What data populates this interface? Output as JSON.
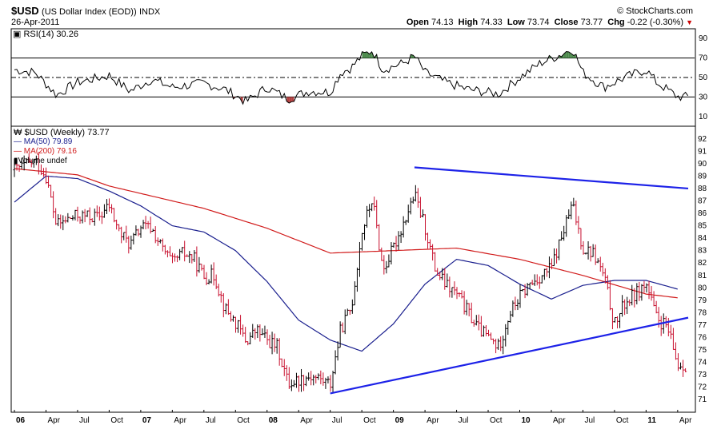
{
  "header": {
    "symbol": "$USD",
    "name": "(US Dollar Index (EOD))",
    "exchange": "INDX",
    "date": "26-Apr-2011",
    "copyright": "© StockCharts.com",
    "open_label": "Open",
    "open": "74.13",
    "high_label": "High",
    "high": "74.33",
    "low_label": "Low",
    "low": "73.74",
    "close_label": "Close",
    "close": "73.77",
    "chg_label": "Chg",
    "chg": "-0.22 (-0.30%)"
  },
  "rsi_panel": {
    "label": "RSI(14) 30.26",
    "yticks": [
      "90",
      "70",
      "50",
      "30",
      "10"
    ]
  },
  "price_panel": {
    "legend": {
      "symbol": "$USD (Weekly) 73.77",
      "ma50": "MA(50) 79.89",
      "ma200": "MA(200) 79.16",
      "volume": "Volume undef"
    },
    "yticks": [
      "92",
      "91",
      "90",
      "89",
      "88",
      "87",
      "86",
      "85",
      "84",
      "83",
      "82",
      "81",
      "80",
      "79",
      "78",
      "77",
      "76",
      "75",
      "74",
      "73",
      "72",
      "71"
    ]
  },
  "colors": {
    "ma50": "#1a1f8e",
    "ma200": "#d11b1b",
    "up": "#000000",
    "down": "#c8102e",
    "trendline": "#1d22e8",
    "rsi_over": "#4c8a4c",
    "rsi_under": "#b34040"
  },
  "chart_data": {
    "type": "line",
    "x_axis_labels": [
      "06",
      "Apr",
      "Jul",
      "Oct",
      "07",
      "Apr",
      "Jul",
      "Oct",
      "08",
      "Apr",
      "Jul",
      "Oct",
      "09",
      "Apr",
      "Jul",
      "Oct",
      "10",
      "Apr",
      "Jul",
      "Oct",
      "11",
      "Apr"
    ],
    "x_axis_bold": [
      "06",
      "07",
      "08",
      "09",
      "10",
      "11"
    ],
    "time_range": [
      "2006-01",
      "2011-04"
    ],
    "price_range": [
      70.5,
      92.5
    ],
    "price_anchors": [
      [
        "2006-01",
        89.5
      ],
      [
        "2006-03",
        90.2
      ],
      [
        "2006-04",
        89.0
      ],
      [
        "2006-05",
        85.0
      ],
      [
        "2006-06",
        85.5
      ],
      [
        "2006-07",
        85.8
      ],
      [
        "2006-09",
        85.7
      ],
      [
        "2006-10",
        86.6
      ],
      [
        "2006-11",
        84.4
      ],
      [
        "2006-12",
        83.5
      ],
      [
        "2007-01",
        84.9
      ],
      [
        "2007-02",
        84.8
      ],
      [
        "2007-03",
        83.2
      ],
      [
        "2007-04",
        82.0
      ],
      [
        "2007-05",
        82.8
      ],
      [
        "2007-06",
        82.4
      ],
      [
        "2007-07",
        80.9
      ],
      [
        "2007-08",
        81.0
      ],
      [
        "2007-09",
        78.3
      ],
      [
        "2007-10",
        77.2
      ],
      [
        "2007-11",
        75.7
      ],
      [
        "2007-12",
        76.6
      ],
      [
        "2008-01",
        75.8
      ],
      [
        "2008-02",
        75.2
      ],
      [
        "2008-03",
        72.3
      ],
      [
        "2008-04",
        72.6
      ],
      [
        "2008-05",
        72.9
      ],
      [
        "2008-06",
        72.7
      ],
      [
        "2008-07",
        72.2
      ],
      [
        "2008-08",
        76.7
      ],
      [
        "2008-09",
        78.4
      ],
      [
        "2008-10",
        84.5
      ],
      [
        "2008-11",
        87.2
      ],
      [
        "2008-12",
        81.4
      ],
      [
        "2009-01",
        83.2
      ],
      [
        "2009-03",
        87.5
      ],
      [
        "2009-04",
        84.9
      ],
      [
        "2009-05",
        81.4
      ],
      [
        "2009-06",
        80.2
      ],
      [
        "2009-07",
        79.5
      ],
      [
        "2009-09",
        76.8
      ],
      [
        "2009-11",
        75.2
      ],
      [
        "2009-12",
        77.9
      ],
      [
        "2010-01",
        79.3
      ],
      [
        "2010-02",
        80.3
      ],
      [
        "2010-04",
        81.6
      ],
      [
        "2010-06",
        86.7
      ],
      [
        "2010-07",
        83.2
      ],
      [
        "2010-08",
        82.8
      ],
      [
        "2010-09",
        80.9
      ],
      [
        "2010-10",
        77.0
      ],
      [
        "2010-11",
        78.8
      ],
      [
        "2010-12",
        79.5
      ],
      [
        "2011-01",
        80.3
      ],
      [
        "2011-02",
        77.5
      ],
      [
        "2011-03",
        76.8
      ],
      [
        "2011-04",
        73.8
      ]
    ],
    "series": [
      {
        "name": "MA(50) 79.89",
        "points": [
          [
            "2006-01",
            86.9
          ],
          [
            "2006-04",
            89.0
          ],
          [
            "2006-07",
            88.8
          ],
          [
            "2006-10",
            87.8
          ],
          [
            "2007-01",
            86.6
          ],
          [
            "2007-04",
            85.0
          ],
          [
            "2007-07",
            84.5
          ],
          [
            "2007-10",
            83.0
          ],
          [
            "2008-01",
            80.5
          ],
          [
            "2008-04",
            77.4
          ],
          [
            "2008-07",
            75.8
          ],
          [
            "2008-10",
            74.9
          ],
          [
            "2009-01",
            77.1
          ],
          [
            "2009-04",
            80.3
          ],
          [
            "2009-07",
            82.3
          ],
          [
            "2009-10",
            81.8
          ],
          [
            "2010-01",
            80.3
          ],
          [
            "2010-04",
            79.1
          ],
          [
            "2010-07",
            80.2
          ],
          [
            "2010-10",
            80.6
          ],
          [
            "2011-01",
            80.6
          ],
          [
            "2011-04",
            79.9
          ]
        ]
      },
      {
        "name": "MA(200) 79.16",
        "points": [
          [
            "2006-01",
            89.6
          ],
          [
            "2006-07",
            89.1
          ],
          [
            "2006-10",
            88.2
          ],
          [
            "2007-01",
            87.6
          ],
          [
            "2007-07",
            86.4
          ],
          [
            "2008-01",
            84.8
          ],
          [
            "2008-07",
            82.8
          ],
          [
            "2009-01",
            83.0
          ],
          [
            "2009-07",
            83.2
          ],
          [
            "2010-01",
            82.3
          ],
          [
            "2010-07",
            81.0
          ],
          [
            "2011-01",
            79.5
          ],
          [
            "2011-04",
            79.2
          ]
        ]
      },
      {
        "name": "RSI(14) 30.26",
        "range": [
          0,
          100
        ],
        "points": [
          [
            "2006-01",
            58
          ],
          [
            "2006-03",
            55
          ],
          [
            "2006-05",
            32
          ],
          [
            "2006-07",
            45
          ],
          [
            "2006-10",
            52
          ],
          [
            "2006-12",
            36
          ],
          [
            "2007-02",
            48
          ],
          [
            "2007-04",
            40
          ],
          [
            "2007-07",
            44
          ],
          [
            "2007-09",
            38
          ],
          [
            "2007-11",
            25
          ],
          [
            "2008-01",
            40
          ],
          [
            "2008-03",
            28
          ],
          [
            "2008-05",
            36
          ],
          [
            "2008-07",
            35
          ],
          [
            "2008-08",
            55
          ],
          [
            "2008-09",
            60
          ],
          [
            "2008-10",
            72
          ],
          [
            "2008-11",
            78
          ],
          [
            "2008-12",
            58
          ],
          [
            "2009-02",
            65
          ],
          [
            "2009-03",
            72
          ],
          [
            "2009-04",
            55
          ],
          [
            "2009-06",
            45
          ],
          [
            "2009-08",
            38
          ],
          [
            "2009-11",
            33
          ],
          [
            "2010-01",
            50
          ],
          [
            "2010-03",
            65
          ],
          [
            "2010-05",
            74
          ],
          [
            "2010-06",
            80
          ],
          [
            "2010-07",
            55
          ],
          [
            "2010-09",
            40
          ],
          [
            "2010-11",
            50
          ],
          [
            "2011-01",
            58
          ],
          [
            "2011-02",
            45
          ],
          [
            "2011-04",
            30.26
          ]
        ]
      }
    ],
    "trendlines": [
      {
        "from": [
          "2009-03",
          89.7
        ],
        "to": [
          "2011-05",
          88.0
        ]
      },
      {
        "from": [
          "2008-07",
          71.5
        ],
        "to": [
          "2011-05",
          77.6
        ]
      }
    ],
    "rsi_levels": [
      70,
      50,
      30
    ]
  }
}
